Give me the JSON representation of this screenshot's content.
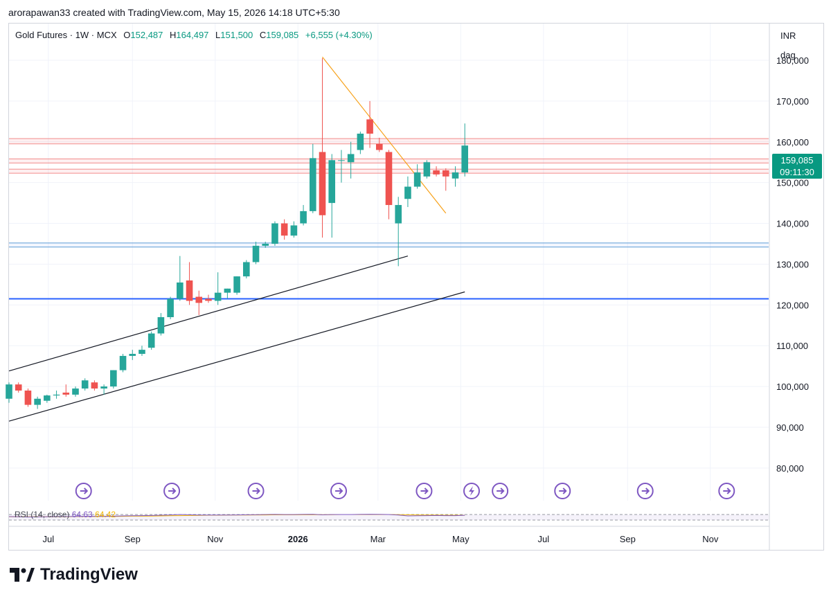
{
  "credit": "arorapawan33 created with TradingView.com, May 15, 2026 14:18 UTC+5:30",
  "legend": {
    "symbol": "Gold Futures · 1W · MCX",
    "open_label": "O",
    "open": "152,487",
    "high_label": "H",
    "high": "164,497",
    "low_label": "L",
    "low": "151,500",
    "close_label": "C",
    "close": "159,085",
    "change": "+6,555 (+4.30%)"
  },
  "currency": "INR",
  "unit_mode": "dag",
  "price_tag": {
    "price": "159,085",
    "countdown": "09:11:30"
  },
  "rsi_legend": {
    "label": "RSI (14, close)",
    "value1": "64.63",
    "value2": "64.42"
  },
  "logo_text": "TradingView",
  "colors": {
    "up": "#26a69a",
    "down": "#ef5350",
    "resistance": "#f28b8b",
    "support_blue": "#5b9bd5",
    "strong_support": "#2962ff",
    "trendline_orange": "#f7a21b",
    "channel": "#131722",
    "event": "#7e57c2"
  },
  "chart_data": {
    "type": "candlestick",
    "timeframe": "1W",
    "y_ticks": [
      180000,
      170000,
      160000,
      150000,
      140000,
      130000,
      120000,
      110000,
      100000,
      90000,
      80000
    ],
    "y_tick_labels": [
      "180,000",
      "170,000",
      "160,000",
      "150,000",
      "140,000",
      "130,000",
      "120,000",
      "110,000",
      "100,000",
      "90,000",
      "80,000"
    ],
    "ylim": [
      72000,
      189000
    ],
    "x_labels": [
      {
        "label": "Jul",
        "date": "2025-07-01"
      },
      {
        "label": "Sep",
        "date": "2025-09-01"
      },
      {
        "label": "Nov",
        "date": "2025-11-01"
      },
      {
        "label": "2026",
        "date": "2026-01-01",
        "bold": true
      },
      {
        "label": "Mar",
        "date": "2026-03-01"
      },
      {
        "label": "May",
        "date": "2026-05-01"
      },
      {
        "label": "Jul",
        "date": "2026-07-01"
      },
      {
        "label": "Sep",
        "date": "2026-09-01"
      },
      {
        "label": "Nov",
        "date": "2026-11-01"
      }
    ],
    "xlim": [
      "2025-06-02",
      "2026-12-14"
    ],
    "candles": [
      {
        "date": "2025-06-02",
        "o": 97000,
        "h": 101000,
        "l": 96000,
        "c": 100500
      },
      {
        "date": "2025-06-09",
        "o": 100500,
        "h": 101000,
        "l": 98500,
        "c": 99000
      },
      {
        "date": "2025-06-16",
        "o": 99000,
        "h": 99500,
        "l": 95000,
        "c": 95500
      },
      {
        "date": "2025-06-23",
        "o": 95500,
        "h": 97500,
        "l": 94500,
        "c": 97000
      },
      {
        "date": "2025-06-30",
        "o": 96500,
        "h": 98000,
        "l": 96000,
        "c": 97800
      },
      {
        "date": "2025-07-07",
        "o": 97800,
        "h": 99000,
        "l": 97000,
        "c": 98000
      },
      {
        "date": "2025-07-14",
        "o": 98500,
        "h": 100500,
        "l": 97500,
        "c": 98000
      },
      {
        "date": "2025-07-21",
        "o": 98000,
        "h": 100000,
        "l": 97500,
        "c": 99500
      },
      {
        "date": "2025-07-28",
        "o": 99500,
        "h": 102000,
        "l": 99000,
        "c": 101500
      },
      {
        "date": "2025-08-04",
        "o": 101000,
        "h": 101500,
        "l": 99000,
        "c": 99500
      },
      {
        "date": "2025-08-11",
        "o": 99500,
        "h": 100500,
        "l": 98000,
        "c": 100000
      },
      {
        "date": "2025-08-18",
        "o": 100000,
        "h": 104000,
        "l": 99500,
        "c": 104000
      },
      {
        "date": "2025-08-25",
        "o": 104000,
        "h": 108000,
        "l": 103500,
        "c": 107500
      },
      {
        "date": "2025-09-01",
        "o": 107500,
        "h": 109000,
        "l": 106500,
        "c": 108000
      },
      {
        "date": "2025-09-08",
        "o": 108000,
        "h": 110000,
        "l": 107500,
        "c": 109000
      },
      {
        "date": "2025-09-15",
        "o": 109500,
        "h": 113500,
        "l": 109000,
        "c": 113000
      },
      {
        "date": "2025-09-22",
        "o": 113000,
        "h": 118000,
        "l": 112500,
        "c": 117000
      },
      {
        "date": "2025-09-29",
        "o": 117000,
        "h": 122000,
        "l": 116500,
        "c": 121500
      },
      {
        "date": "2025-10-06",
        "o": 121500,
        "h": 132000,
        "l": 121000,
        "c": 125500
      },
      {
        "date": "2025-10-13",
        "o": 126000,
        "h": 130500,
        "l": 120000,
        "c": 121000
      },
      {
        "date": "2025-10-20",
        "o": 122000,
        "h": 123500,
        "l": 117500,
        "c": 120500
      },
      {
        "date": "2025-10-27",
        "o": 121500,
        "h": 122500,
        "l": 120500,
        "c": 121000
      },
      {
        "date": "2025-11-03",
        "o": 121000,
        "h": 128000,
        "l": 120000,
        "c": 123000
      },
      {
        "date": "2025-11-10",
        "o": 123000,
        "h": 124000,
        "l": 121500,
        "c": 124000
      },
      {
        "date": "2025-11-17",
        "o": 123000,
        "h": 127000,
        "l": 122500,
        "c": 127000
      },
      {
        "date": "2025-11-24",
        "o": 127000,
        "h": 131000,
        "l": 126500,
        "c": 130500
      },
      {
        "date": "2025-12-01",
        "o": 130500,
        "h": 135500,
        "l": 130000,
        "c": 134500
      },
      {
        "date": "2025-12-08",
        "o": 134500,
        "h": 135500,
        "l": 134000,
        "c": 135000
      },
      {
        "date": "2025-12-15",
        "o": 135000,
        "h": 140500,
        "l": 134500,
        "c": 140000
      },
      {
        "date": "2025-12-22",
        "o": 140000,
        "h": 141000,
        "l": 136000,
        "c": 137000
      },
      {
        "date": "2025-12-29",
        "o": 137000,
        "h": 140500,
        "l": 136500,
        "c": 139500
      },
      {
        "date": "2026-01-05",
        "o": 140000,
        "h": 144500,
        "l": 139500,
        "c": 143000
      },
      {
        "date": "2026-01-12",
        "o": 143000,
        "h": 159500,
        "l": 142500,
        "c": 156000
      },
      {
        "date": "2026-01-19",
        "o": 157500,
        "h": 180500,
        "l": 136500,
        "c": 142000
      },
      {
        "date": "2026-01-26",
        "o": 145000,
        "h": 157000,
        "l": 136500,
        "c": 155500
      },
      {
        "date": "2026-02-02",
        "o": 155500,
        "h": 158000,
        "l": 150000,
        "c": 155500
      },
      {
        "date": "2026-02-09",
        "o": 155000,
        "h": 160000,
        "l": 151000,
        "c": 157000
      },
      {
        "date": "2026-02-16",
        "o": 158000,
        "h": 162500,
        "l": 157000,
        "c": 162000
      },
      {
        "date": "2026-02-23",
        "o": 165500,
        "h": 170000,
        "l": 158500,
        "c": 162000
      },
      {
        "date": "2026-03-02",
        "o": 159500,
        "h": 161000,
        "l": 157500,
        "c": 158000
      },
      {
        "date": "2026-03-09",
        "o": 157500,
        "h": 158000,
        "l": 141000,
        "c": 144500
      },
      {
        "date": "2026-03-16",
        "o": 140000,
        "h": 146500,
        "l": 129500,
        "c": 144500
      },
      {
        "date": "2026-03-23",
        "o": 146000,
        "h": 151500,
        "l": 144000,
        "c": 149000
      },
      {
        "date": "2026-03-30",
        "o": 149000,
        "h": 154500,
        "l": 148500,
        "c": 152500
      },
      {
        "date": "2026-04-06",
        "o": 151500,
        "h": 155500,
        "l": 151000,
        "c": 155000
      },
      {
        "date": "2026-04-13",
        "o": 153000,
        "h": 154000,
        "l": 151500,
        "c": 152000
      },
      {
        "date": "2026-04-20",
        "o": 153000,
        "h": 153500,
        "l": 148000,
        "c": 151500
      },
      {
        "date": "2026-04-27",
        "o": 151000,
        "h": 154000,
        "l": 149000,
        "c": 152500
      },
      {
        "date": "2026-05-04",
        "o": 152487,
        "h": 164497,
        "l": 151500,
        "c": 159085
      }
    ],
    "horizontal_levels": [
      {
        "kind": "resistance",
        "y1": 159500,
        "y2": 160800
      },
      {
        "kind": "resistance",
        "y1": 154800,
        "y2": 155800
      },
      {
        "kind": "resistance",
        "y1": 152300,
        "y2": 153300
      },
      {
        "kind": "support",
        "y1": 134200,
        "y2": 135200
      },
      {
        "kind": "strong-support",
        "y1": 121500,
        "y2": 121500
      }
    ],
    "trendlines": [
      {
        "kind": "falling",
        "from": {
          "date": "2026-01-19",
          "y": 180800
        },
        "to": {
          "date": "2026-04-20",
          "y": 142500
        }
      },
      {
        "kind": "channel-upper",
        "from": {
          "date": "2025-06-02",
          "y": 103800
        },
        "to": {
          "date": "2026-03-23",
          "y": 132000
        }
      },
      {
        "kind": "channel-lower",
        "from": {
          "date": "2025-06-02",
          "y": 91500
        },
        "to": {
          "date": "2026-05-04",
          "y": 123200
        }
      }
    ],
    "event_markers": [
      {
        "date": "2025-07-27",
        "icon": "arrow"
      },
      {
        "date": "2025-09-30",
        "icon": "arrow"
      },
      {
        "date": "2025-12-01",
        "icon": "arrow"
      },
      {
        "date": "2026-01-31",
        "icon": "arrow"
      },
      {
        "date": "2026-04-04",
        "icon": "arrow"
      },
      {
        "date": "2026-05-09",
        "icon": "lightning"
      },
      {
        "date": "2026-05-30",
        "icon": "arrow"
      },
      {
        "date": "2026-07-15",
        "icon": "arrow"
      },
      {
        "date": "2026-09-14",
        "icon": "arrow"
      },
      {
        "date": "2026-11-13",
        "icon": "arrow"
      }
    ],
    "rsi": {
      "length": 14,
      "ylim": [
        0,
        100
      ],
      "bands": [
        70,
        30
      ],
      "values": [
        55,
        54,
        52,
        53,
        54,
        55,
        55,
        56,
        57,
        57,
        57,
        58,
        60,
        61,
        62,
        63,
        65,
        67,
        70,
        68,
        66,
        66,
        66,
        66,
        67,
        68,
        69,
        70,
        71,
        70,
        70,
        71,
        72,
        68,
        70,
        70,
        70,
        71,
        72,
        71,
        70,
        66,
        60,
        61,
        62,
        63,
        62,
        62,
        64.63
      ],
      "ma_values": [
        54,
        54,
        54,
        54,
        54,
        54,
        54,
        55,
        55,
        55,
        56,
        56,
        57,
        58,
        58,
        59,
        60,
        61,
        62,
        63,
        64,
        65,
        65,
        66,
        66,
        66,
        67,
        67,
        68,
        68,
        68,
        69,
        69,
        69,
        69,
        70,
        70,
        70,
        70,
        70,
        70,
        69,
        68,
        67,
        66,
        66,
        65,
        65,
        64.42
      ]
    }
  }
}
